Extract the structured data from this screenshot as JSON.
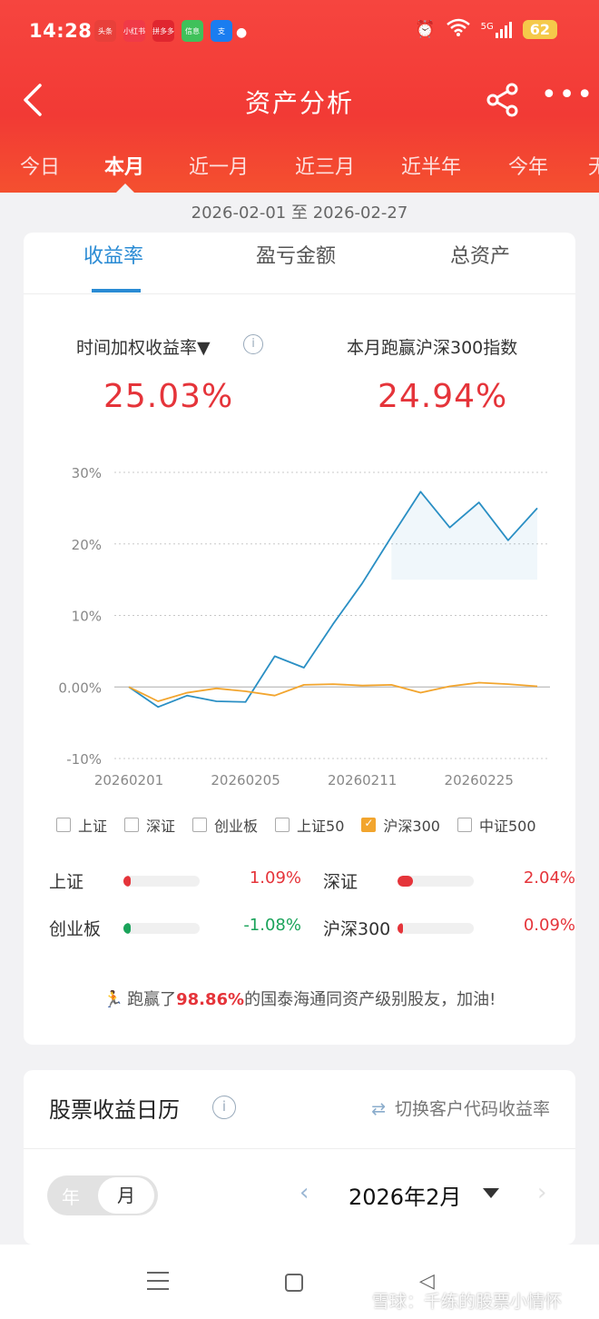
{
  "status": {
    "time": "14:28",
    "apps": [
      {
        "label": "头条",
        "color": "#e8403a"
      },
      {
        "label": "小红书",
        "color": "#f03a47"
      },
      {
        "label": "拼多多",
        "color": "#e0262f"
      },
      {
        "label": "信息",
        "color": "#3fc15a"
      },
      {
        "label": "支",
        "color": "#1a7df0"
      }
    ],
    "network": "5G",
    "battery": "62"
  },
  "header": {
    "title": "资产分析",
    "tabs": [
      "今日",
      "本月",
      "近一月",
      "近三月",
      "近半年",
      "今年",
      "无"
    ],
    "active_tab": "本月"
  },
  "date_range": "2026-02-01 至 2026-02-27",
  "subtabs": [
    "收益率",
    "盈亏金额",
    "总资产"
  ],
  "metrics": {
    "left_label": "时间加权收益率▼",
    "left_value": "25.03%",
    "right_label": "本月跑赢沪深300指数",
    "right_value": "24.94%"
  },
  "chart_data": {
    "type": "line",
    "x": [
      "20260201",
      "20260202",
      "20260203",
      "20260204",
      "20260205",
      "20260206",
      "20260209",
      "20260210",
      "20260211",
      "20260212",
      "20260213",
      "20260224",
      "20260225",
      "20260226",
      "20260227"
    ],
    "x_tick_labels": [
      "20260201",
      "20260205",
      "20260211",
      "20260225"
    ],
    "y_tick_labels": [
      "30%",
      "20%",
      "10%",
      "0.00%",
      "-10%"
    ],
    "ylim": [
      -10,
      30
    ],
    "series": [
      {
        "name": "",
        "color": "#2a8fc4",
        "values": [
          0,
          -2.8,
          -1.2,
          -2.0,
          -2.1,
          4.3,
          2.7,
          8.8,
          14.5,
          21.0,
          27.3,
          22.3,
          25.8,
          20.5,
          25.0
        ]
      },
      {
        "name": "沪深300",
        "color": "#f2a52e",
        "values": [
          0,
          -2.0,
          -0.8,
          -0.2,
          -0.6,
          -1.2,
          0.3,
          0.4,
          0.2,
          0.3,
          -0.8,
          0.1,
          0.6,
          0.4,
          0.1
        ]
      }
    ],
    "grid": true
  },
  "legend": [
    {
      "label": "上证",
      "checked": false
    },
    {
      "label": "深证",
      "checked": false
    },
    {
      "label": "创业板",
      "checked": false
    },
    {
      "label": "上证50",
      "checked": false
    },
    {
      "label": "沪深300",
      "checked": true
    },
    {
      "label": "中证500",
      "checked": false
    }
  ],
  "indices": [
    {
      "name": "上证",
      "value": "1.09%",
      "fill": 0.1,
      "color": "#e5343a",
      "tone": "red"
    },
    {
      "name": "深证",
      "value": "2.04%",
      "fill": 0.2,
      "color": "#e5343a",
      "tone": "red"
    },
    {
      "name": "创业板",
      "value": "-1.08%",
      "fill": 0.1,
      "color": "#1aa35a",
      "tone": "green"
    },
    {
      "name": "沪深300",
      "value": "0.09%",
      "fill": 0.01,
      "color": "#e5343a",
      "tone": "red"
    }
  ],
  "beat": {
    "prefix": "跑赢了",
    "percent": "98.86%",
    "suffix": "的国泰海通同资产级别股友，加油!"
  },
  "calendar": {
    "title": "股票收益日历",
    "switch_label": "切换客户代码收益率",
    "seg_year": "年",
    "seg_month": "月",
    "month": "2026年2月"
  },
  "watermark": "雪球：千练的股票小情怀"
}
